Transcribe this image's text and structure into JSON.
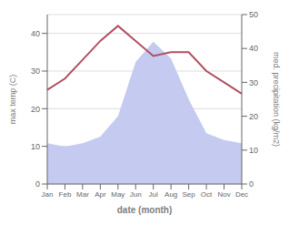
{
  "chart_data": {
    "type": "line",
    "categories": [
      "Jan",
      "Feb",
      "Mar",
      "Apr",
      "May",
      "Jun",
      "Jul",
      "Aug",
      "Sep",
      "Oct",
      "Nov",
      "Dec"
    ],
    "series": [
      {
        "type": "area",
        "color": "#c5caf0",
        "axis": "y2",
        "values": [
          12,
          11,
          12,
          14,
          20,
          36,
          42,
          37,
          25,
          15,
          13,
          12
        ]
      },
      {
        "type": "line",
        "color": "#b05060",
        "values": [
          25,
          28,
          33,
          38,
          42,
          38,
          34,
          35,
          35,
          30,
          27,
          24
        ]
      }
    ],
    "xlabel": "date (month)",
    "ylabel": "max temp (C)",
    "y2label": "med. precipitation (kg/m2)",
    "ylim": [
      0,
      45
    ],
    "yticks": [
      0,
      10,
      20,
      30,
      40
    ],
    "y2lim": [
      0,
      50
    ],
    "y2ticks": [
      0,
      10,
      20,
      30,
      40,
      50
    ],
    "grid": true
  }
}
